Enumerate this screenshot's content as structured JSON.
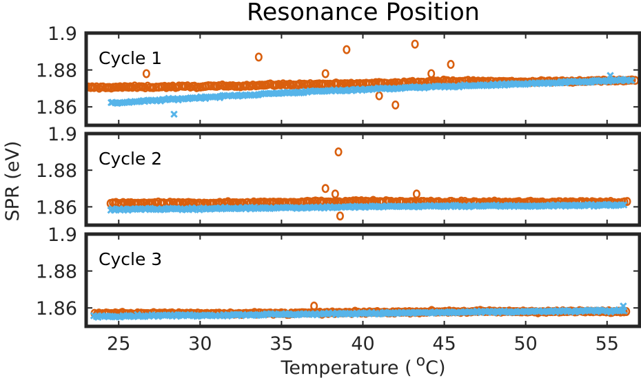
{
  "chart_data": {
    "type": "scatter",
    "title": "Resonance Position",
    "xlabel": "Temperature (",
    "xlabel_unit_sup": "o",
    "xlabel_unit_tail": "C)",
    "ylabel": "SPR (eV)",
    "xlim": [
      23,
      57
    ],
    "x_ticks": [
      "25",
      "30",
      "35",
      "40",
      "45",
      "50",
      "55"
    ],
    "x_tick_values": [
      25,
      30,
      35,
      40,
      45,
      50,
      55
    ],
    "ylim": [
      1.85,
      1.9
    ],
    "y_ticks": [
      "1.86",
      "1.88",
      "1.9"
    ],
    "y_tick_values": [
      1.86,
      1.88,
      1.9
    ],
    "grid": false,
    "colors": {
      "series_o": "#d95f0e",
      "series_x": "#56b4e9",
      "axes": "#262626"
    },
    "panels": [
      {
        "label": "Cycle 1",
        "series": [
          {
            "marker": "o",
            "trend": {
              "x": [
                23.0,
                30.0,
                35.0,
                40.0,
                45.0,
                50.0,
                56.7
              ],
              "y": [
                1.8705,
                1.871,
                1.872,
                1.8725,
                1.874,
                1.8735,
                1.8745
              ]
            },
            "outliers": {
              "x": [
                26.7,
                33.6,
                37.7,
                39.0,
                41.0,
                42.0,
                43.2,
                44.2,
                45.4
              ],
              "y": [
                1.878,
                1.887,
                1.878,
                1.891,
                1.866,
                1.861,
                1.894,
                1.878,
                1.883
              ]
            }
          },
          {
            "marker": "x",
            "trend": {
              "x": [
                24.5,
                30.0,
                35.0,
                40.0,
                45.0,
                50.0,
                56.5
              ],
              "y": [
                1.862,
                1.865,
                1.8675,
                1.8695,
                1.871,
                1.8725,
                1.8745
              ]
            },
            "outliers": {
              "x": [
                28.4,
                55.2
              ],
              "y": [
                1.856,
                1.877
              ]
            }
          }
        ]
      },
      {
        "label": "Cycle 2",
        "series": [
          {
            "marker": "o",
            "trend": {
              "x": [
                24.5,
                30.0,
                35.0,
                40.0,
                45.0,
                50.0,
                56.2
              ],
              "y": [
                1.862,
                1.862,
                1.8625,
                1.863,
                1.8625,
                1.8625,
                1.8625
              ]
            },
            "outliers": {
              "x": [
                38.5,
                37.7,
                38.3,
                38.6,
                43.3
              ],
              "y": [
                1.89,
                1.87,
                1.867,
                1.855,
                1.867
              ]
            }
          },
          {
            "marker": "x",
            "trend": {
              "x": [
                24.5,
                30.0,
                35.0,
                40.0,
                45.0,
                50.0,
                56.0
              ],
              "y": [
                1.8585,
                1.859,
                1.8595,
                1.86,
                1.8605,
                1.8605,
                1.861
              ]
            },
            "outliers": {
              "x": [],
              "y": []
            }
          }
        ]
      },
      {
        "label": "Cycle 3",
        "series": [
          {
            "marker": "o",
            "trend": {
              "x": [
                23.5,
                30.0,
                35.0,
                40.0,
                45.0,
                50.0,
                56.2
              ],
              "y": [
                1.857,
                1.857,
                1.857,
                1.8575,
                1.858,
                1.858,
                1.858
              ]
            },
            "outliers": {
              "x": [
                37.0
              ],
              "y": [
                1.861
              ]
            }
          },
          {
            "marker": "x",
            "trend": {
              "x": [
                23.5,
                30.0,
                35.0,
                40.0,
                45.0,
                50.0,
                56.0
              ],
              "y": [
                1.8555,
                1.856,
                1.8565,
                1.857,
                1.8575,
                1.858,
                1.8585
              ]
            },
            "outliers": {
              "x": [
                56.0
              ],
              "y": [
                1.861
              ]
            }
          }
        ]
      }
    ]
  }
}
